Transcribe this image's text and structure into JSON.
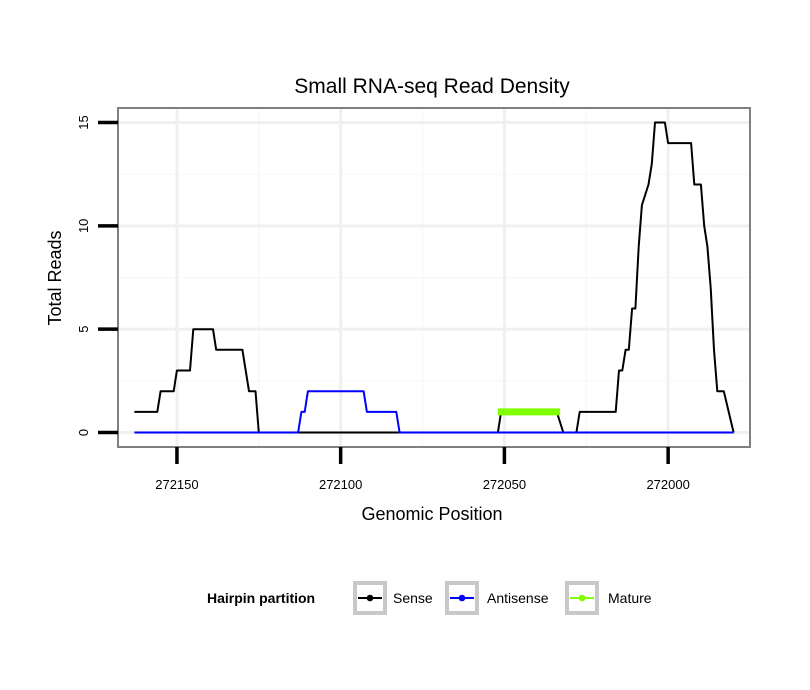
{
  "chart_data": {
    "type": "line",
    "title": "Small RNA-seq Read Density",
    "xlabel": "Genomic Position",
    "ylabel": "Total Reads",
    "x_reversed": true,
    "xlim": [
      272168,
      271975
    ],
    "ylim": [
      -0.7,
      15.7
    ],
    "x_ticks": [
      272150,
      272100,
      272050,
      272000
    ],
    "x_tick_labels": [
      "272150",
      "272100",
      "272050",
      "272000"
    ],
    "y_ticks": [
      0,
      5,
      10,
      15
    ],
    "y_tick_labels": [
      "0",
      "5",
      "10",
      "15"
    ],
    "grid": true,
    "legend": {
      "position": "bottom",
      "title": "Hairpin partition",
      "entries": [
        {
          "label": "Sense",
          "color": "#000000"
        },
        {
          "label": "Antisense",
          "color": "#0000ff"
        },
        {
          "label": "Mature",
          "color": "#7fff00"
        }
      ]
    },
    "series": [
      {
        "name": "Sense",
        "color": "#000000",
        "points": [
          [
            272163,
            1
          ],
          [
            272156,
            1
          ],
          [
            272155,
            2
          ],
          [
            272151,
            2
          ],
          [
            272150,
            3
          ],
          [
            272146,
            3
          ],
          [
            272145,
            5
          ],
          [
            272139,
            5
          ],
          [
            272138,
            4
          ],
          [
            272130,
            4
          ],
          [
            272128,
            2
          ],
          [
            272126,
            2
          ],
          [
            272125,
            0
          ],
          [
            272088,
            0
          ],
          [
            272087,
            0
          ],
          [
            272052,
            0
          ],
          [
            272051,
            1
          ],
          [
            272034,
            1
          ],
          [
            272032,
            0
          ],
          [
            272028,
            0
          ],
          [
            272027,
            1
          ],
          [
            272016,
            1
          ],
          [
            272015,
            3
          ],
          [
            272014,
            3
          ],
          [
            272013,
            4
          ],
          [
            272012,
            4
          ],
          [
            272011,
            6
          ],
          [
            272010,
            6
          ],
          [
            272009,
            9
          ],
          [
            272008,
            11
          ],
          [
            272006,
            12
          ],
          [
            272005,
            13
          ],
          [
            272004,
            15
          ],
          [
            272001,
            15
          ],
          [
            272000,
            14
          ],
          [
            271993,
            14
          ],
          [
            271992,
            12
          ],
          [
            271990,
            12
          ],
          [
            271989,
            10
          ],
          [
            271988,
            9
          ],
          [
            271987,
            7
          ],
          [
            271986,
            4
          ],
          [
            271985,
            2
          ],
          [
            271983,
            2
          ],
          [
            271980,
            0
          ]
        ]
      },
      {
        "name": "Antisense",
        "color": "#0000ff",
        "points": [
          [
            272163,
            0
          ],
          [
            272113,
            0
          ],
          [
            272112,
            1
          ],
          [
            272111,
            1
          ],
          [
            272110,
            2
          ],
          [
            272093,
            2
          ],
          [
            272092,
            1
          ],
          [
            272083,
            1
          ],
          [
            272082,
            0
          ],
          [
            271980,
            0
          ]
        ]
      },
      {
        "name": "Mature",
        "color": "#7fff00",
        "points": [
          [
            272052,
            1
          ],
          [
            272033,
            1
          ]
        ]
      }
    ]
  }
}
